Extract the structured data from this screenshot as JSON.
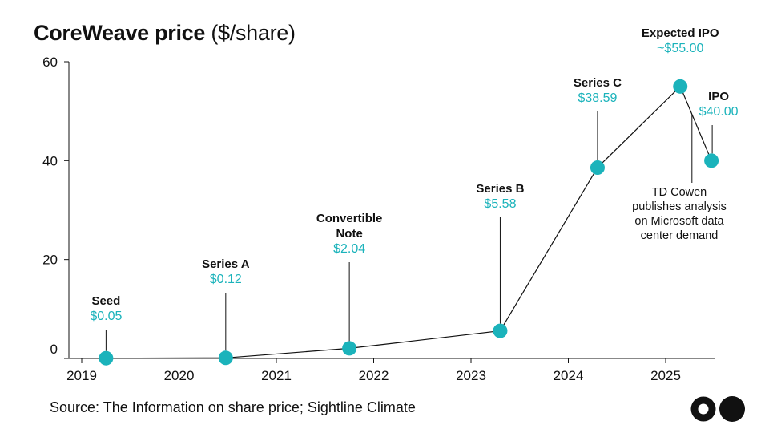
{
  "header": {
    "title_bold": "CoreWeave price",
    "title_unit": "($/share)"
  },
  "footer": {
    "source": "Source: The Information on share price; Sightline Climate"
  },
  "colors": {
    "accent": "#1bb3bb",
    "line": "#111111"
  },
  "chart_data": {
    "type": "line",
    "title": "CoreWeave price ($/share)",
    "xlabel": "",
    "ylabel": "",
    "xlim": [
      2019,
      2025.7
    ],
    "ylim": [
      0,
      60
    ],
    "x_ticks": [
      "2019",
      "2020",
      "2021",
      "2022",
      "2023",
      "2024",
      "2025"
    ],
    "y_ticks": [
      "0",
      "20",
      "40",
      "60"
    ],
    "series": [
      {
        "name": "CoreWeave price",
        "points": [
          {
            "x": 2019.25,
            "y": 0.05,
            "label": "Seed",
            "value_label": "$0.05"
          },
          {
            "x": 2020.48,
            "y": 0.12,
            "label": "Series A",
            "value_label": "$0.12"
          },
          {
            "x": 2021.75,
            "y": 2.04,
            "label": "Convertible Note",
            "label_lines": [
              "Convertible",
              "Note"
            ],
            "value_label": "$2.04"
          },
          {
            "x": 2023.3,
            "y": 5.58,
            "label": "Series B",
            "value_label": "$5.58"
          },
          {
            "x": 2024.3,
            "y": 38.59,
            "label": "Series C",
            "value_label": "$38.59"
          },
          {
            "x": 2025.15,
            "y": 55.0,
            "label": "Expected IPO",
            "value_label": "~$55.00"
          },
          {
            "x": 2025.47,
            "y": 40.0,
            "label": "IPO",
            "value_label": "$40.00"
          }
        ]
      }
    ],
    "annotations": [
      {
        "text": "TD Cowen publishes analysis on Microsoft data center demand",
        "lines": [
          "TD Cowen",
          "publishes analysis",
          "on Microsoft data",
          "center demand"
        ],
        "x": 2025.27
      }
    ]
  }
}
